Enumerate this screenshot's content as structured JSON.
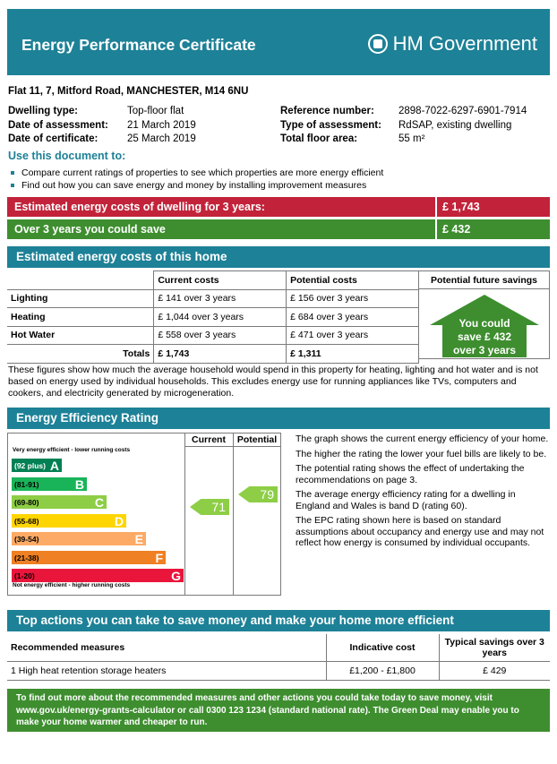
{
  "header": {
    "title": "Energy Performance Certificate",
    "gov": "HM Government"
  },
  "address": "Flat 11, 7, Mitford Road, MANCHESTER, M14 6NU",
  "left_info": [
    {
      "label": "Dwelling type:",
      "value": "Top-floor flat"
    },
    {
      "label": "Date of assessment:",
      "value": "21   March   2019"
    },
    {
      "label": "Date of certificate:",
      "value": "25   March   2019"
    }
  ],
  "right_info": [
    {
      "label": "Reference number:",
      "value": "2898-7022-6297-6901-7914"
    },
    {
      "label": "Type of assessment:",
      "value": "RdSAP, existing dwelling"
    },
    {
      "label": "Total floor area:",
      "value": "55 m²"
    }
  ],
  "use_doc": {
    "title": "Use this document to:",
    "items": [
      "Compare current ratings of properties to see which properties are more energy efficient",
      "Find out how you can save energy and money by installing improvement measures"
    ]
  },
  "summary": {
    "cost_label": "Estimated energy costs of dwelling for 3 years:",
    "cost_value": "£ 1,743",
    "save_label": "Over 3 years you could save",
    "save_value": "£ 432"
  },
  "costs_section": {
    "title": "Estimated energy costs of this home",
    "headers": [
      "Current costs",
      "Potential costs",
      "Potential future savings"
    ],
    "rows": [
      {
        "label": "Lighting",
        "current": "£ 141 over 3 years",
        "potential": "£ 156 over 3 years"
      },
      {
        "label": "Heating",
        "current": "£ 1,044 over 3 years",
        "potential": "£ 684 over 3 years"
      },
      {
        "label": "Hot Water",
        "current": "£ 558 over 3 years",
        "potential": "£ 471 over 3 years"
      }
    ],
    "totals": {
      "label": "Totals",
      "current": "£ 1,743",
      "potential": "£ 1,311"
    },
    "saving_lines": [
      "You could",
      "save £ 432",
      "over 3 years"
    ],
    "explain": "These figures show how much the average household would spend in this property for heating, lighting and hot water and is not based on energy used by individual households. This excludes energy use for running appliances like TVs, computers and cookers, and electricity generated by microgeneration."
  },
  "rating_section": {
    "title": "Energy Efficiency Rating",
    "top_note": "Very energy efficient - lower running costs",
    "bottom_note": "Not energy efficient - higher running costs",
    "col_current": "Current",
    "col_potential": "Potential",
    "bands": [
      {
        "range": "(92 plus)",
        "letter": "A",
        "color": "#008054"
      },
      {
        "range": "(81-91)",
        "letter": "B",
        "color": "#19b459"
      },
      {
        "range": "(69-80)",
        "letter": "C",
        "color": "#8dce46"
      },
      {
        "range": "(55-68)",
        "letter": "D",
        "color": "#ffd500"
      },
      {
        "range": "(39-54)",
        "letter": "E",
        "color": "#fcaa65"
      },
      {
        "range": "(21-38)",
        "letter": "F",
        "color": "#ef8023"
      },
      {
        "range": "(1-20)",
        "letter": "G",
        "color": "#e9153b"
      }
    ],
    "current_value": "71",
    "potential_value": "79",
    "arrow_color": "#8dce46",
    "notes": [
      "The graph shows the current energy efficiency of your home.",
      "The higher the rating the lower your fuel bills are likely to be.",
      "The potential rating shows the effect of undertaking the recommendations on page 3.",
      "The average energy efficiency rating for a dwelling in England and Wales is band D (rating 60).",
      "The EPC rating shown here is based on standard assumptions about occupancy and energy use and may not reflect how energy is consumed by individual occupants."
    ]
  },
  "actions_section": {
    "title": "Top actions you can take to save money and make your home more efficient",
    "headers": [
      "Recommended measures",
      "Indicative cost",
      "Typical savings over 3 years"
    ],
    "rows": [
      {
        "measure": "1  High heat retention storage heaters",
        "cost": "£1,200 - £1,800",
        "saving": "£ 429"
      }
    ]
  },
  "footer": {
    "text": "To find out more about the recommended measures and other actions you could take today to save money, visit www.gov.uk/energy-grants-calculator or call 0300 123 1234 (standard national rate). The Green Deal may enable you to make your home warmer and cheaper to run."
  }
}
